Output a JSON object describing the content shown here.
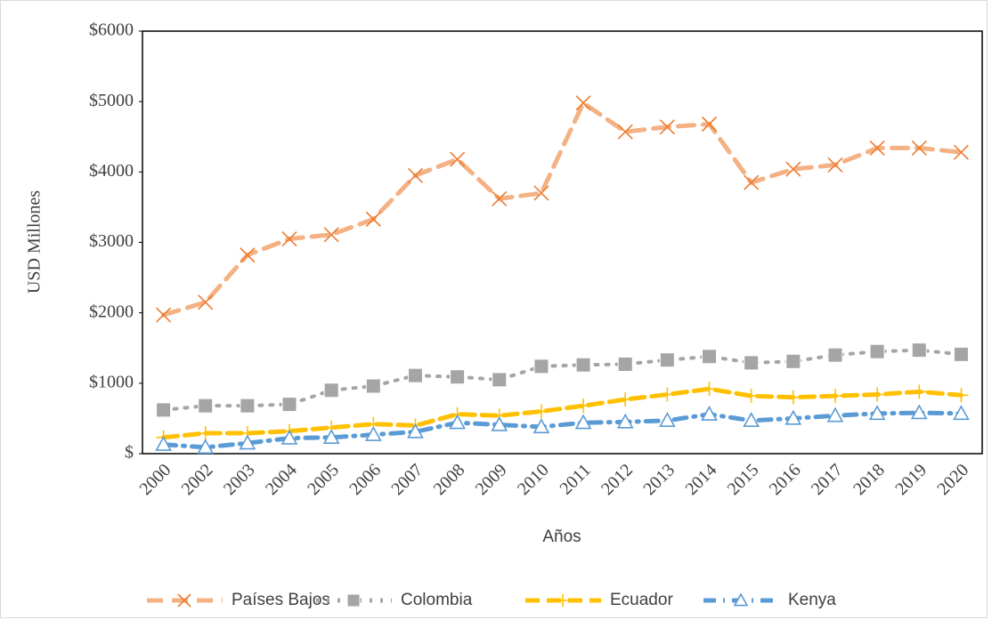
{
  "chart_data": {
    "type": "line",
    "x_label": "Años",
    "y_label": "USD Millones",
    "categories": [
      "2000",
      "2002",
      "2003",
      "2004",
      "2005",
      "2006",
      "2007",
      "2008",
      "2009",
      "2010",
      "2011",
      "2012",
      "2013",
      "2014",
      "2015",
      "2016",
      "2017",
      "2018",
      "2019",
      "2020"
    ],
    "ylim": [
      0,
      6000
    ],
    "yticks": [
      {
        "value": 0,
        "label": "$"
      },
      {
        "value": 1000,
        "label": "$1000"
      },
      {
        "value": 2000,
        "label": "$2000"
      },
      {
        "value": 3000,
        "label": "$3000"
      },
      {
        "value": 4000,
        "label": "$4000"
      },
      {
        "value": 5000,
        "label": "$5000"
      },
      {
        "value": 6000,
        "label": "$6000"
      }
    ],
    "grid": false,
    "legend": "bottom",
    "series": [
      {
        "name": "Países Bajos",
        "color": "#f4b183",
        "marker_color": "#ed7d31",
        "marker": "x",
        "values": [
          1970,
          2150,
          2820,
          3050,
          3110,
          3330,
          3950,
          4180,
          3620,
          3700,
          4980,
          4570,
          4640,
          4680,
          3850,
          4040,
          4100,
          4340,
          4340,
          4280
        ]
      },
      {
        "name": "Colombia",
        "color": "#a5a5a5",
        "marker_color": "#a5a5a5",
        "marker": "square",
        "values": [
          620,
          680,
          680,
          700,
          900,
          960,
          1110,
          1090,
          1050,
          1240,
          1260,
          1270,
          1330,
          1380,
          1290,
          1310,
          1400,
          1450,
          1470,
          1410
        ]
      },
      {
        "name": "Ecuador",
        "color": "#ffc000",
        "marker_color": "#ffc000",
        "marker": "plus",
        "values": [
          230,
          290,
          290,
          320,
          370,
          420,
          400,
          560,
          540,
          600,
          680,
          770,
          840,
          920,
          820,
          800,
          820,
          840,
          880,
          830
        ]
      },
      {
        "name": "Kenya",
        "color": "#5b9bd5",
        "marker_color": "#5b9bd5",
        "marker": "triangle",
        "values": [
          130,
          90,
          150,
          220,
          230,
          270,
          310,
          440,
          410,
          380,
          440,
          450,
          470,
          560,
          470,
          500,
          540,
          570,
          580,
          570
        ]
      }
    ]
  }
}
